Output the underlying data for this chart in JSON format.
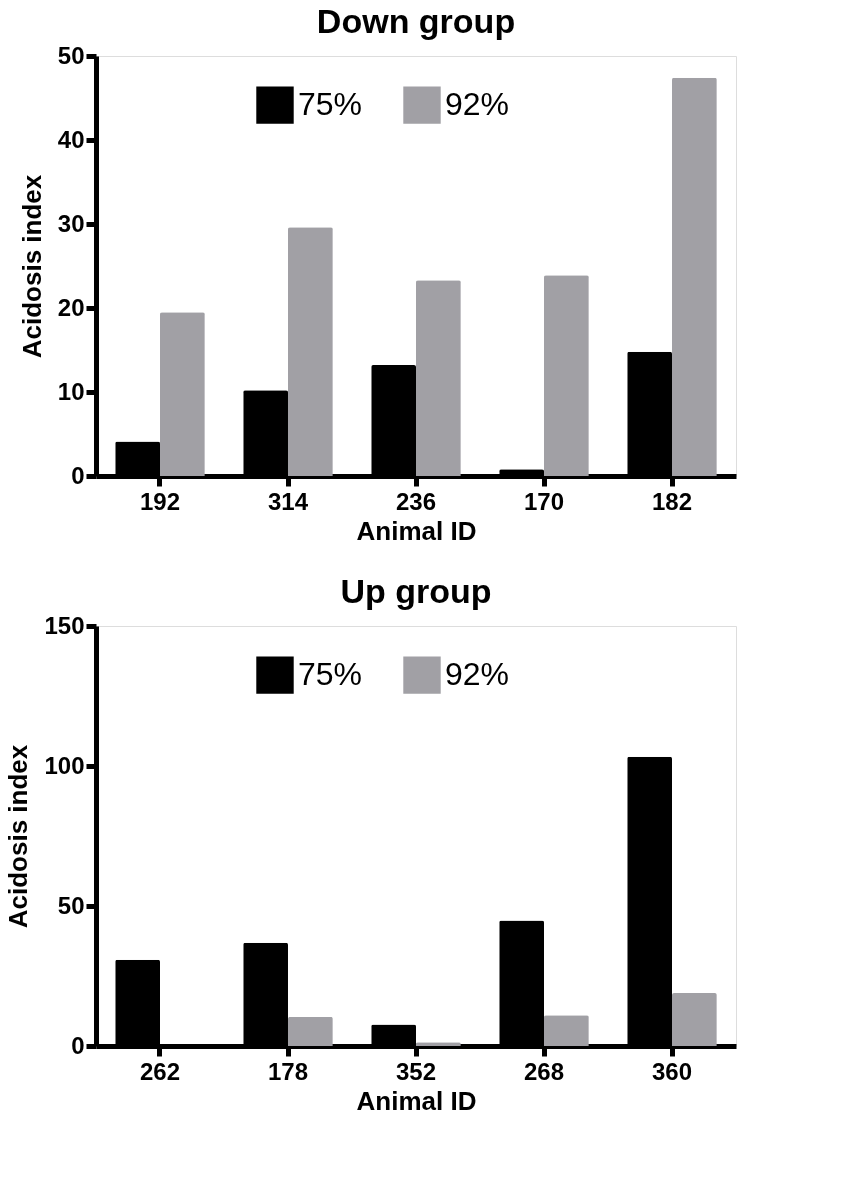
{
  "chart_data": [
    {
      "type": "bar",
      "title": "Down group",
      "xlabel": "Animal ID",
      "ylabel": "Acidosis index",
      "categories": [
        "192",
        "314",
        "236",
        "170",
        "182"
      ],
      "ylim": [
        0,
        50
      ],
      "yticks": [
        0,
        10,
        20,
        30,
        40,
        50
      ],
      "grid": false,
      "legend": "top",
      "series": [
        {
          "name": "75%",
          "color": "#000000",
          "values": [
            4.1,
            10.2,
            13.2,
            0.8,
            14.8
          ]
        },
        {
          "name": "92%",
          "color": "#a1a0a5",
          "values": [
            19.5,
            29.6,
            23.3,
            23.9,
            47.4
          ]
        }
      ]
    },
    {
      "type": "bar",
      "title": "Up group",
      "xlabel": "Animal ID",
      "ylabel": "Acidosis index",
      "categories": [
        "262",
        "178",
        "352",
        "268",
        "360"
      ],
      "ylim": [
        0,
        150
      ],
      "yticks": [
        0,
        50,
        100,
        150
      ],
      "grid": false,
      "legend": "top",
      "series": [
        {
          "name": "75%",
          "color": "#000000",
          "values": [
            30.8,
            36.9,
            7.7,
            44.8,
            103.3
          ]
        },
        {
          "name": "92%",
          "color": "#a1a0a5",
          "values": [
            0,
            10.4,
            1.3,
            11.0,
            18.9
          ]
        }
      ]
    }
  ]
}
